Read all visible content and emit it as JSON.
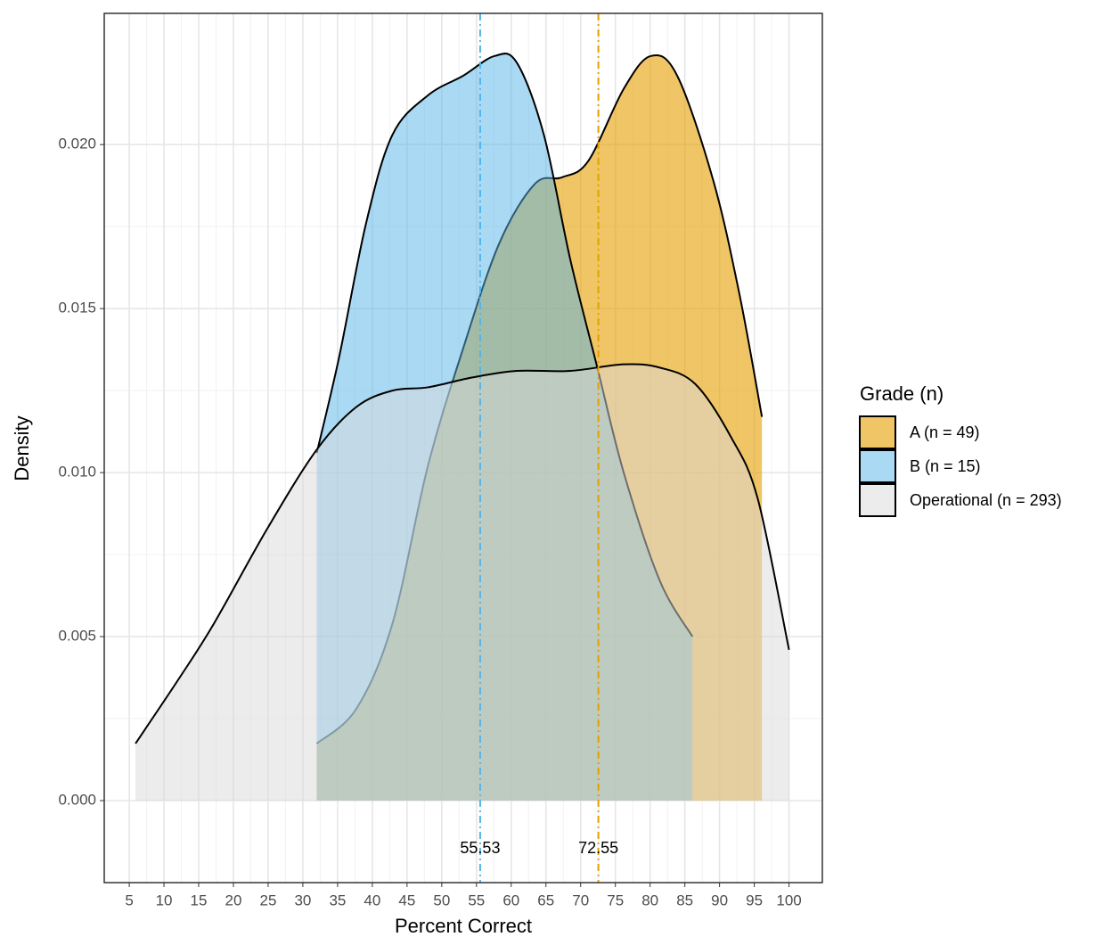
{
  "chart_data": {
    "type": "density",
    "x_label": "Percent Correct",
    "y_label": "Density",
    "legend_title": "Grade (n)",
    "legend": "right",
    "grid": true,
    "xlim": [
      1.4,
      104.8
    ],
    "ylim": [
      -0.0025,
      0.024
    ],
    "xticks": [
      5,
      10,
      15,
      20,
      25,
      30,
      35,
      40,
      45,
      50,
      55,
      60,
      65,
      70,
      75,
      80,
      85,
      90,
      95,
      100
    ],
    "yticks": [
      {
        "value": 0,
        "label": "0.000"
      },
      {
        "value": 0.005,
        "label": "0.005"
      },
      {
        "value": 0.01,
        "label": "0.010"
      },
      {
        "value": 0.015,
        "label": "0.015"
      },
      {
        "value": 0.02,
        "label": "0.020"
      }
    ],
    "series": [
      {
        "name": "A (n = 49)",
        "color": "#E69F00",
        "x": [
          32,
          37.7,
          42.9,
          48,
          53.1,
          58.3,
          63.4,
          67.3,
          71.1,
          76.2,
          80.1,
          83.9,
          89.1,
          92.9,
          96.1
        ],
        "values": [
          0.00174,
          0.0028,
          0.0054,
          0.0102,
          0.0138,
          0.017,
          0.0188,
          0.019,
          0.0195,
          0.0217,
          0.0227,
          0.0221,
          0.0189,
          0.0154,
          0.0117
        ]
      },
      {
        "name": "B (n = 15)",
        "color": "#56B4E9",
        "x": [
          32,
          35.2,
          39.1,
          42.9,
          48,
          53.1,
          57.6,
          60.8,
          64.7,
          68.5,
          72.4,
          76.2,
          81.4,
          86.1
        ],
        "values": [
          0.0106,
          0.0135,
          0.0176,
          0.0203,
          0.0215,
          0.0221,
          0.0227,
          0.0225,
          0.0203,
          0.0165,
          0.0132,
          0.01,
          0.0067,
          0.005
        ]
      },
      {
        "name": "Operational (n = 293)",
        "color": "#D9D9D9",
        "x": [
          5.9,
          12.1,
          17.2,
          24.9,
          32,
          37.7,
          42.9,
          48,
          54.4,
          60.8,
          68.5,
          76.2,
          81.4,
          86.5,
          91.6,
          95.5,
          100
        ],
        "values": [
          0.00174,
          0.0037,
          0.0054,
          0.0083,
          0.0107,
          0.012,
          0.0125,
          0.0126,
          0.0129,
          0.0131,
          0.0131,
          0.0133,
          0.0132,
          0.0127,
          0.0111,
          0.0092,
          0.0046
        ]
      }
    ],
    "vlines": [
      {
        "value": 55.53,
        "color": "#56B4E9"
      },
      {
        "value": 72.55,
        "color": "#E69F00"
      }
    ]
  }
}
